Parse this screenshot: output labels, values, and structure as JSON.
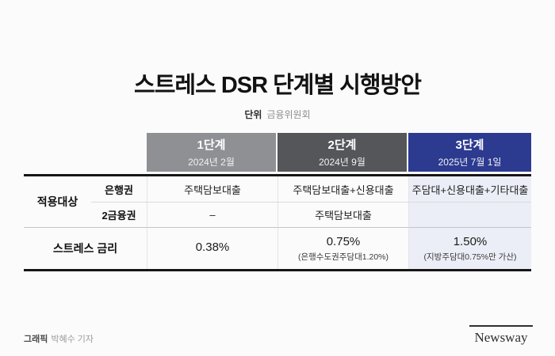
{
  "page": {
    "title": "스트레스 DSR 단계별 시행방안",
    "unit_label": "단위",
    "unit_value": "금융위원회"
  },
  "table": {
    "columns": [
      {
        "stage": "1단계",
        "date": "2024년 2월"
      },
      {
        "stage": "2단계",
        "date": "2024년 9월"
      },
      {
        "stage": "3단계",
        "date": "2025년 7월 1일"
      }
    ],
    "group_label": "적용대상",
    "rows": [
      {
        "label": "은행권",
        "cells": [
          "주택담보대출",
          "주택담보대출+신용대출",
          "주담대+신용대출+기타대출"
        ]
      },
      {
        "label": "2금융권",
        "cells": [
          "–",
          "주택담보대출",
          ""
        ]
      }
    ],
    "rate": {
      "label": "스트레스 금리",
      "cells": [
        {
          "value": "0.38%",
          "note": ""
        },
        {
          "value": "0.75%",
          "note": "(은행수도권주담대1.20%)"
        },
        {
          "value": "1.50%",
          "note": "(지방주담대0.75%만 가산)"
        }
      ]
    }
  },
  "footer": {
    "credit_label": "그래픽",
    "credit_value": "박혜수 기자",
    "logo_text": "Newsway"
  },
  "colors": {
    "stage1_header_bg": "#8f9094",
    "stage2_header_bg": "#55565a",
    "stage3_header_bg": "#2c3a90",
    "stage3_body_bg": "#eceef7",
    "table_border": "#161616"
  },
  "chart_data": {
    "type": "table",
    "title": "스트레스 DSR 단계별 시행방안",
    "source": "금융위원회",
    "columns": [
      "",
      "1단계 2024년 2월",
      "2단계 2024년 9월",
      "3단계 2025년 7월 1일"
    ],
    "rows": [
      [
        "적용대상 은행권",
        "주택담보대출",
        "주택담보대출+신용대출",
        "주담대+신용대출+기타대출"
      ],
      [
        "적용대상 2금융권",
        "–",
        "주택담보대출",
        ""
      ],
      [
        "스트레스 금리",
        "0.38%",
        "0.75% (은행수도권주담대1.20%)",
        "1.50% (지방주담대0.75%만 가산)"
      ]
    ]
  }
}
